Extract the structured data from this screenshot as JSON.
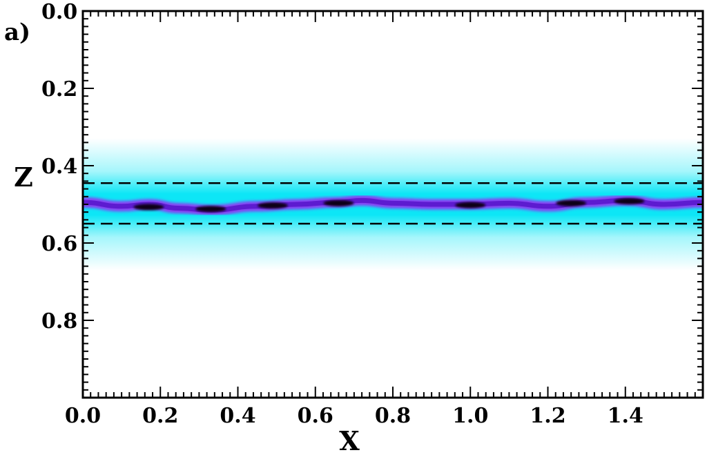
{
  "chart_data": {
    "type": "heatmap",
    "panel_label": "a)",
    "xlabel": "X",
    "ylabel": "Z",
    "xlim": [
      0.0,
      1.6
    ],
    "ylim": [
      0.0,
      1.0
    ],
    "y_axis_inverted": true,
    "x_ticks": [
      "0.0",
      "0.2",
      "0.4",
      "0.6",
      "0.8",
      "1.0",
      "1.2",
      "1.4"
    ],
    "x_tick_values": [
      0.0,
      0.2,
      0.4,
      0.6,
      0.8,
      1.0,
      1.2,
      1.4
    ],
    "y_ticks": [
      "0.0",
      "0.2",
      "0.4",
      "0.6",
      "0.8"
    ],
    "y_tick_values": [
      0.0,
      0.2,
      0.4,
      0.6,
      0.8
    ],
    "dashed_lines_z": [
      0.445,
      0.55
    ],
    "colormap": [
      "#ffffff",
      "#00e5f5",
      "#7a2df0",
      "#000000"
    ],
    "background_band": {
      "z_center": 0.5,
      "z_halfwidth": 0.09
    },
    "central_layer": {
      "x": [
        0.0,
        0.1,
        0.17,
        0.25,
        0.33,
        0.45,
        0.55,
        0.65,
        0.72,
        0.8,
        0.9,
        1.0,
        1.1,
        1.2,
        1.3,
        1.4,
        1.5,
        1.6
      ],
      "z": [
        0.495,
        0.505,
        0.5,
        0.51,
        0.515,
        0.505,
        0.5,
        0.495,
        0.49,
        0.497,
        0.5,
        0.5,
        0.497,
        0.505,
        0.495,
        0.49,
        0.5,
        0.495
      ]
    },
    "dark_cores": [
      {
        "x": 0.17,
        "z": 0.507
      },
      {
        "x": 0.33,
        "z": 0.512
      },
      {
        "x": 0.49,
        "z": 0.503
      },
      {
        "x": 0.66,
        "z": 0.497
      },
      {
        "x": 1.0,
        "z": 0.502
      },
      {
        "x": 1.26,
        "z": 0.497
      },
      {
        "x": 1.41,
        "z": 0.492
      }
    ]
  }
}
